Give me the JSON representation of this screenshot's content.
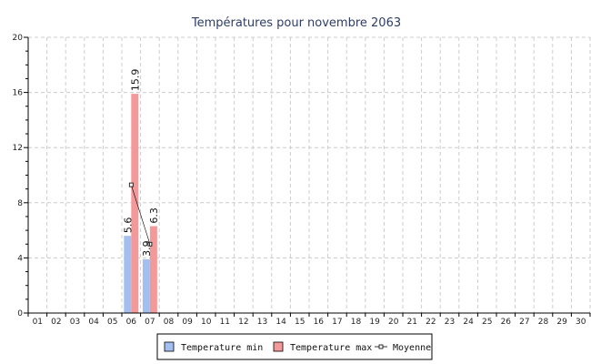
{
  "chart_data": {
    "type": "bar",
    "title": "Températures pour novembre 2063",
    "categories": [
      "01",
      "02",
      "03",
      "04",
      "05",
      "06",
      "07",
      "08",
      "09",
      "10",
      "11",
      "12",
      "13",
      "14",
      "15",
      "16",
      "17",
      "18",
      "19",
      "20",
      "21",
      "22",
      "23",
      "24",
      "25",
      "26",
      "27",
      "28",
      "29",
      "30"
    ],
    "series": [
      {
        "name": "Temperature min",
        "kind": "bar",
        "color": "#a3bff0",
        "values": [
          null,
          null,
          null,
          null,
          null,
          5.6,
          3.9,
          null,
          null,
          null,
          null,
          null,
          null,
          null,
          null,
          null,
          null,
          null,
          null,
          null,
          null,
          null,
          null,
          null,
          null,
          null,
          null,
          null,
          null,
          null
        ]
      },
      {
        "name": "Temperature max",
        "kind": "bar",
        "color": "#f4999a",
        "values": [
          null,
          null,
          null,
          null,
          null,
          15.9,
          6.3,
          null,
          null,
          null,
          null,
          null,
          null,
          null,
          null,
          null,
          null,
          null,
          null,
          null,
          null,
          null,
          null,
          null,
          null,
          null,
          null,
          null,
          null,
          null
        ]
      },
      {
        "name": "Moyenne",
        "kind": "line",
        "color": "#000000",
        "values": [
          null,
          null,
          null,
          null,
          null,
          9.3,
          5.0,
          null,
          null,
          null,
          null,
          null,
          null,
          null,
          null,
          null,
          null,
          null,
          null,
          null,
          null,
          null,
          null,
          null,
          null,
          null,
          null,
          null,
          null,
          null
        ]
      }
    ],
    "ylim": [
      0,
      20
    ],
    "yticks": [
      0,
      4,
      8,
      12,
      16,
      20
    ],
    "grid": true,
    "legend_position": "bottom"
  }
}
